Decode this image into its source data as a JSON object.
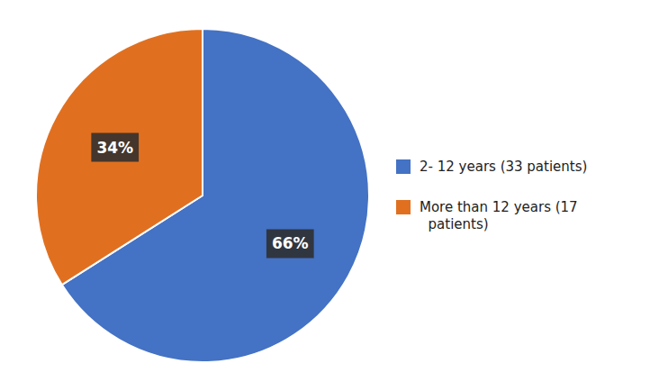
{
  "chart_data": {
    "type": "pie",
    "categories": [
      "2- 12 years (33 patients)",
      "More than 12 years (17\n  patients)"
    ],
    "values": [
      66,
      34
    ],
    "value_labels": [
      "66%",
      "34%"
    ],
    "colors": [
      "#4472C4",
      "#E07020"
    ],
    "data_labels": true,
    "legend": "right"
  }
}
